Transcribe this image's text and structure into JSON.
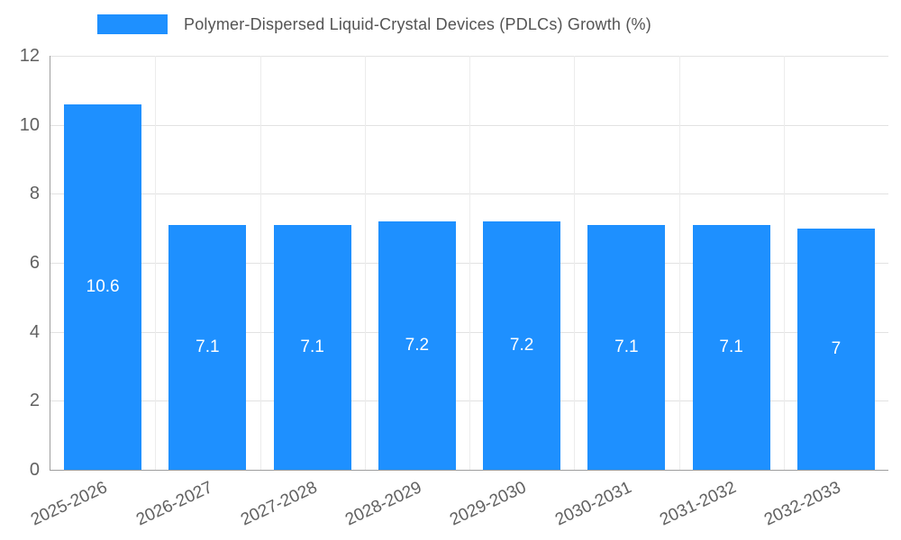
{
  "chart_data": {
    "type": "bar",
    "title": "Polymer-Dispersed Liquid-Crystal Devices (PDLCs) Growth (%)",
    "categories": [
      "2025-2026",
      "2026-2027",
      "2027-2028",
      "2028-2029",
      "2029-2030",
      "2030-2031",
      "2031-2032",
      "2032-2033"
    ],
    "values": [
      10.6,
      7.1,
      7.1,
      7.2,
      7.2,
      7.1,
      7.1,
      7
    ],
    "value_labels": [
      "10.6",
      "7.1",
      "7.1",
      "7.2",
      "7.2",
      "7.1",
      "7.1",
      "7"
    ],
    "xlabel": "",
    "ylabel": "",
    "ylim": [
      0,
      12
    ],
    "yticks": [
      0,
      2,
      4,
      6,
      8,
      10,
      12
    ],
    "grid": true,
    "legend_position": "top",
    "bar_color": "#1e90ff",
    "bar_label_color": "#ffffff",
    "axis_text_color": "#616161",
    "gridline_color": "#e2e2e2"
  }
}
